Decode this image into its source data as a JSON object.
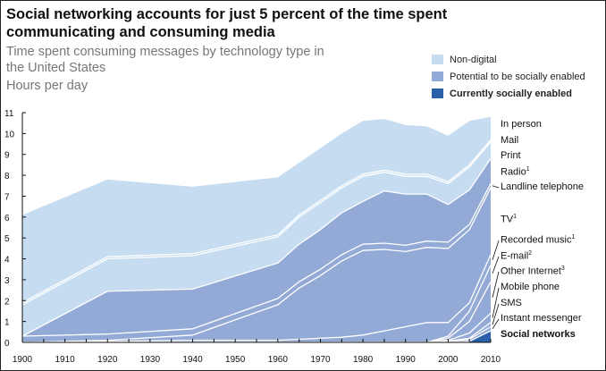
{
  "title": "Social networking accounts for just 5 percent of the time spent communicating and consuming media",
  "subtitle": "Time spent consuming messages by technology type in the United States",
  "units": "Hours per day",
  "legend": [
    {
      "label": "Non-digital",
      "color": "#c6dcf0",
      "bold": false
    },
    {
      "label": "Potential to be socially enabled",
      "color": "#93a9d6",
      "bold": false
    },
    {
      "label": "Currently socially enabled",
      "color": "#2a5fa9",
      "bold": true
    }
  ],
  "chart_data": {
    "type": "area",
    "stacked": true,
    "ylabel": "Hours per day",
    "ylim": [
      0,
      11
    ],
    "xlim": [
      1900,
      2010
    ],
    "y_ticks": [
      "0",
      "1",
      "2",
      "3",
      "4",
      "5",
      "6",
      "7",
      "8",
      "9",
      "10",
      "11"
    ],
    "x_ticks": [
      "1900",
      "1910",
      "1920",
      "1930",
      "1940",
      "1950",
      "1960",
      "1970",
      "1980",
      "1990",
      "2000",
      "2010"
    ],
    "x": [
      1900,
      1920,
      1940,
      1960,
      1965,
      1970,
      1975,
      1980,
      1985,
      1990,
      1995,
      2000,
      2005,
      2010
    ],
    "series": [
      {
        "name": "Social networks",
        "group": "Currently socially enabled",
        "footnote": "",
        "values": [
          0,
          0,
          0,
          0,
          0,
          0,
          0,
          0,
          0,
          0,
          0,
          0,
          0.05,
          0.55
        ]
      },
      {
        "name": "Instant messenger",
        "group": "Potential to be socially enabled",
        "footnote": "",
        "values": [
          0,
          0,
          0,
          0,
          0,
          0,
          0,
          0,
          0,
          0,
          0,
          0.05,
          0.1,
          0.2
        ]
      },
      {
        "name": "SMS",
        "group": "Potential to be socially enabled",
        "footnote": "",
        "values": [
          0,
          0,
          0,
          0,
          0,
          0,
          0,
          0,
          0,
          0,
          0,
          0,
          0.05,
          0.2
        ]
      },
      {
        "name": "Mobile phone",
        "group": "Potential to be socially enabled",
        "footnote": "",
        "values": [
          0,
          0,
          0,
          0,
          0,
          0,
          0,
          0,
          0,
          0,
          0,
          0.05,
          0.25,
          0.45
        ]
      },
      {
        "name": "Other Internet",
        "group": "Potential to be socially enabled",
        "footnote": "3",
        "values": [
          0,
          0,
          0,
          0,
          0,
          0,
          0,
          0,
          0,
          0,
          0,
          0.1,
          0.55,
          1.5
        ]
      },
      {
        "name": "E-mail",
        "group": "Potential to be socially enabled",
        "footnote": "2",
        "values": [
          0,
          0,
          0,
          0,
          0,
          0,
          0,
          0,
          0,
          0,
          0,
          0.1,
          0.5,
          0.8
        ]
      },
      {
        "name": "Recorded music",
        "group": "Potential to be socially enabled",
        "footnote": "1",
        "values": [
          0,
          0.05,
          0.1,
          0.1,
          0.15,
          0.2,
          0.25,
          0.35,
          0.55,
          0.75,
          0.95,
          0.65,
          0.4,
          0.5
        ]
      },
      {
        "name": "TV",
        "group": "Potential to be socially enabled",
        "footnote": "1",
        "values": [
          0,
          0.05,
          0.25,
          1.7,
          2.45,
          3.0,
          3.65,
          4.05,
          3.9,
          3.6,
          3.6,
          3.55,
          3.5,
          3.2
        ]
      },
      {
        "name": "Landline telephone",
        "group": "Potential to be socially enabled",
        "footnote": "",
        "values": [
          0.3,
          0.3,
          0.3,
          0.3,
          0.3,
          0.3,
          0.3,
          0.3,
          0.3,
          0.3,
          0.3,
          0.3,
          0.25,
          0.2
        ]
      },
      {
        "name": "Radio",
        "group": "Potential to be socially enabled",
        "footnote": "1",
        "values": [
          0,
          2.05,
          1.9,
          1.7,
          1.8,
          1.9,
          2.0,
          2.05,
          2.5,
          2.45,
          2.25,
          1.8,
          1.65,
          1.2
        ]
      },
      {
        "name": "Print",
        "group": "Non-digital",
        "footnote": "",
        "values": [
          1.5,
          1.55,
          1.6,
          1.25,
          1.3,
          1.3,
          1.2,
          1.2,
          0.9,
          0.85,
          0.85,
          1.0,
          1.1,
          0.8
        ]
      },
      {
        "name": "Mail",
        "group": "Non-digital",
        "footnote": "",
        "values": [
          0.1,
          0.1,
          0.1,
          0.1,
          0.1,
          0.1,
          0.1,
          0.1,
          0.1,
          0.1,
          0.1,
          0.1,
          0.1,
          0.1
        ]
      },
      {
        "name": "In person",
        "group": "Non-digital",
        "footnote": "",
        "values": [
          4.2,
          3.7,
          3.2,
          2.75,
          2.5,
          2.5,
          2.5,
          2.55,
          2.45,
          2.35,
          2.3,
          2.2,
          2.1,
          1.1
        ]
      }
    ],
    "grid": false,
    "legend_position": "top-right"
  }
}
